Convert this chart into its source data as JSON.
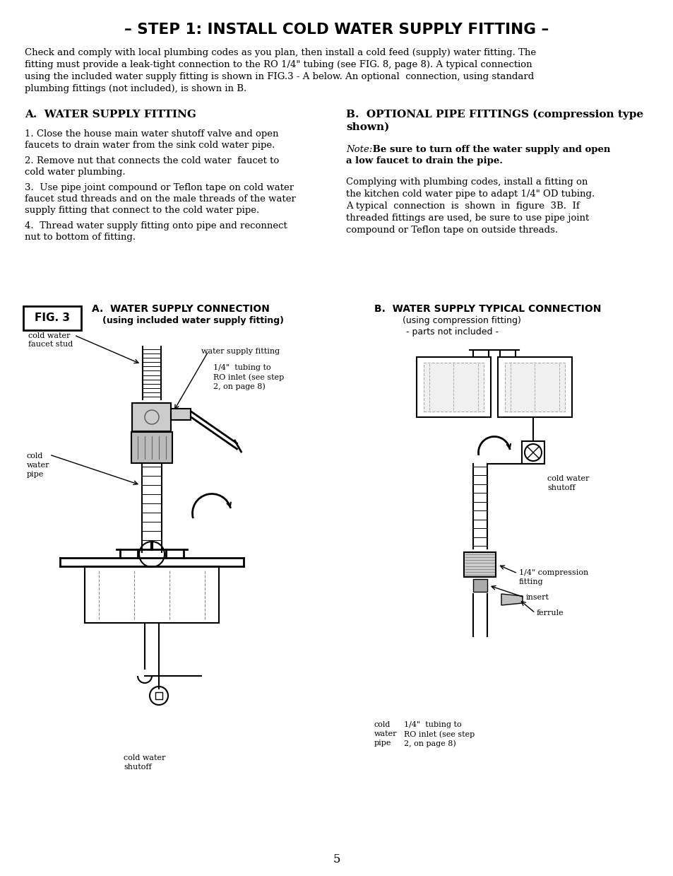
{
  "title": "– STEP 1: INSTALL COLD WATER SUPPLY FITTING –",
  "bg_color": "#ffffff",
  "text_color": "#000000",
  "page_number": "5",
  "intro_lines": [
    "Check and comply with local plumbing codes as you plan, then install a cold feed (supply) water fitting. The",
    "fitting must provide a leak-tight connection to the RO 1/4\" tubing (see FIG. 8, page 8). A typical connection",
    "using the included water supply fitting is shown in FIG.3 - A below. An optional  connection, using standard",
    "plumbing fittings (not included), is shown in B."
  ],
  "section_a_title": "A.  WATER SUPPLY FITTING",
  "step1_lines": [
    "1. Close the house main water shutoff valve and open",
    "faucets to drain water from the sink cold water pipe."
  ],
  "step2_lines": [
    "2. Remove nut that connects the cold water  faucet to",
    "cold water plumbing."
  ],
  "step3_lines": [
    "3.  Use pipe joint compound or Teflon tape on cold water",
    "faucet stud threads and on the male threads of the water",
    "supply fitting that connect to the cold water pipe."
  ],
  "step4_lines": [
    "4.  Thread water supply fitting onto pipe and reconnect",
    "nut to bottom of fitting."
  ],
  "section_b_title1": "B.  OPTIONAL PIPE FITTINGS (compression type",
  "section_b_title2": "shown)",
  "note_italic": "Note:",
  "note_bold1": " Be sure to turn off the water supply and open",
  "note_bold2": "a low faucet to drain the pipe.",
  "b_text_lines": [
    "Complying with plumbing codes, install a fitting on",
    "the kitchen cold water pipe to adapt 1/4\" OD tubing.",
    "A typical  connection  is  shown  in  figure  3B.  If",
    "threaded fittings are used, be sure to use pipe joint",
    "compound or Teflon tape on outside threads."
  ],
  "fig3_label": "FIG. 3",
  "fig3a_title": "A.  WATER SUPPLY CONNECTION",
  "fig3a_subtitle": "(using included water supply fitting)",
  "fig3b_title": "B.  WATER SUPPLY TYPICAL CONNECTION",
  "fig3b_subtitle": "(using compression fitting)",
  "fig3b_note": "- parts not included -",
  "label_cold_faucet": [
    "cold water",
    "faucet stud"
  ],
  "label_wsf": "water supply fitting",
  "label_tubing1": "1/4\"  tubing to",
  "label_tubing2": "RO inlet (see step",
  "label_tubing3": "2, on page 8)",
  "label_cwp": [
    "cold",
    "water",
    "pipe"
  ],
  "label_cws_a": [
    "cold water",
    "shutoff"
  ],
  "label_cws_b": [
    "cold water",
    "shutoff"
  ],
  "label_cwp_b": [
    "cold",
    "water",
    "pipe"
  ],
  "label_compression": [
    "1/4\" compression",
    "fitting"
  ],
  "label_insert": "insert",
  "label_ferrule": "ferrule",
  "label_tubing_b1": "1/4\"  tubing to",
  "label_tubing_b2": "RO inlet (see step",
  "label_tubing_b3": "2, on page 8)"
}
